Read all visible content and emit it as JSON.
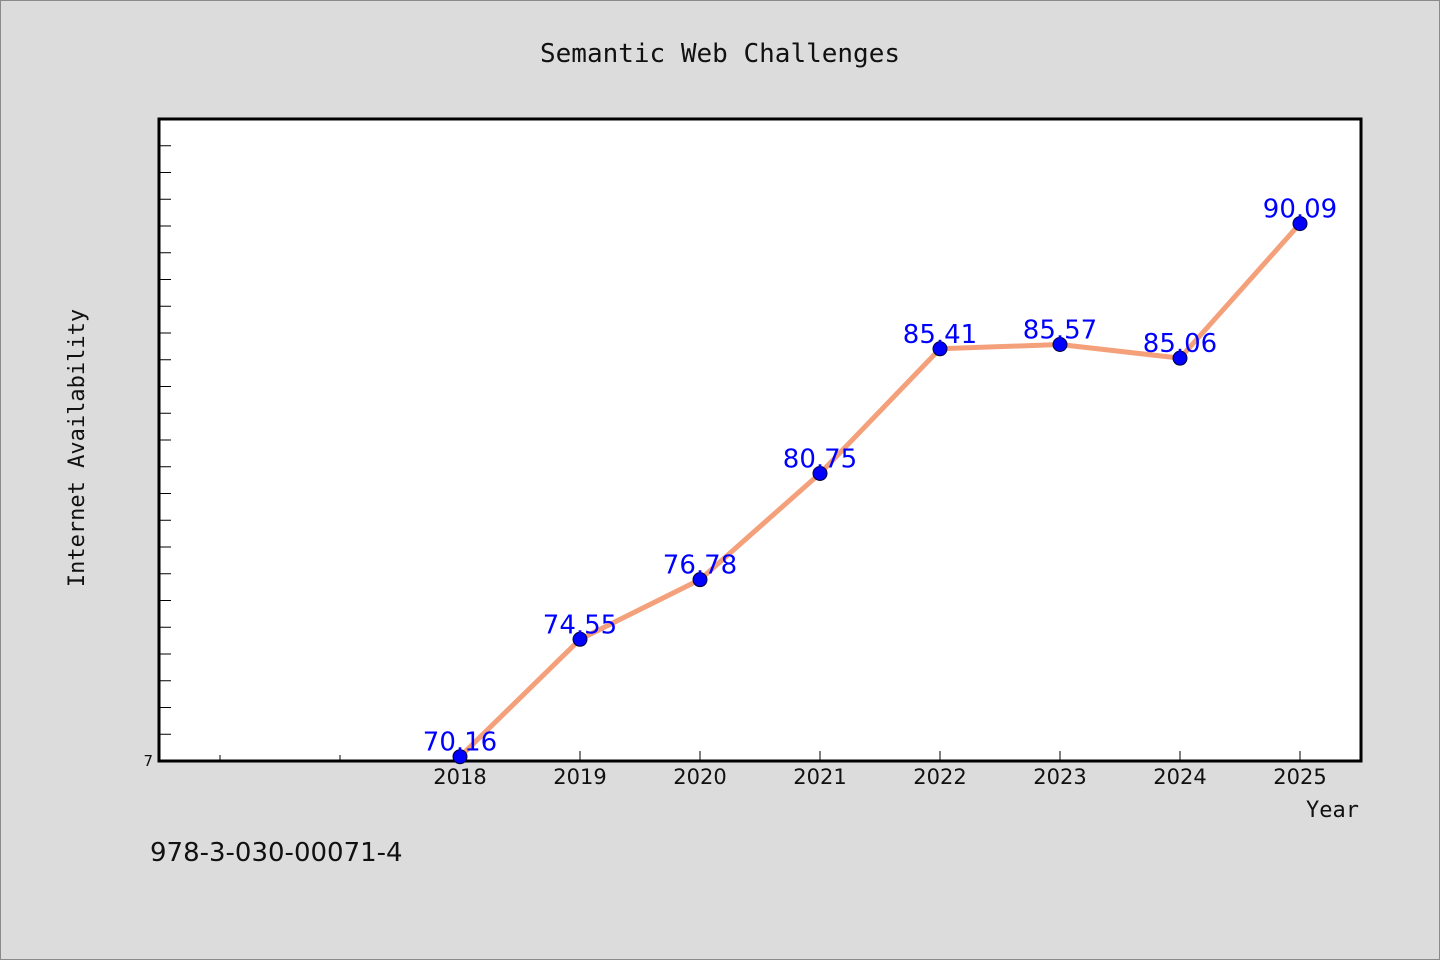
{
  "chart_data": {
    "type": "line",
    "title": "Semantic Web Challenges",
    "xlabel": "Year",
    "ylabel": "Internet Availability",
    "x": [
      "2018",
      "2019",
      "2020",
      "2021",
      "2022",
      "2023",
      "2024",
      "2025"
    ],
    "series": [
      {
        "values": [
          70.16,
          74.55,
          76.78,
          80.75,
          85.41,
          85.57,
          85.06,
          90.09
        ]
      }
    ],
    "ylim": [
      70,
      94
    ],
    "y_tick_labels": [
      "7"
    ],
    "line_color": "#f4a07a",
    "marker_color": "#0000ff",
    "label_color": "#0000ff",
    "grid": false
  },
  "footer_text": "978-3-030-00071-4"
}
